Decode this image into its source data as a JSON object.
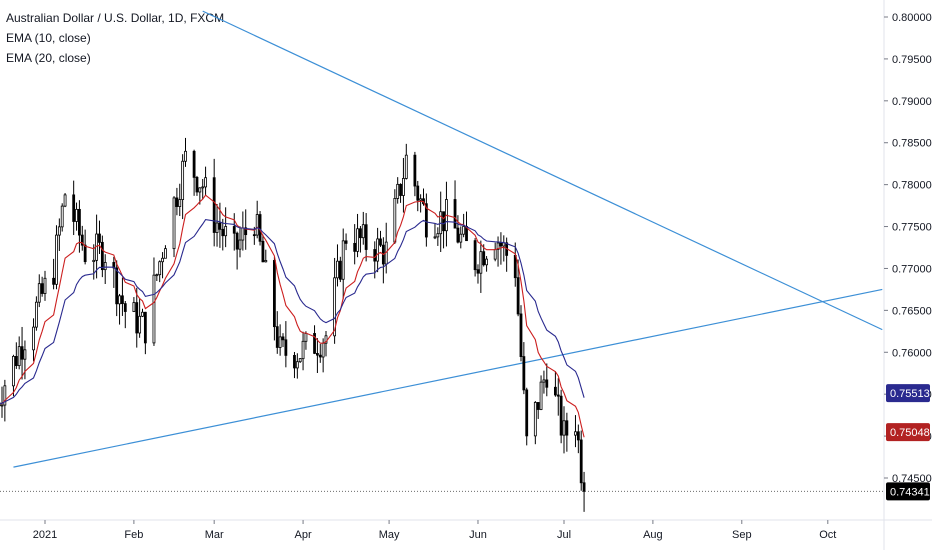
{
  "legend": {
    "title": "Australian Dollar / U.S. Dollar, 1D, FXCM",
    "ema10": "EMA (10, close)",
    "ema20": "EMA (20, close)"
  },
  "colors": {
    "candle": "#000000",
    "ema10": "#cc1f1f",
    "ema20": "#2a2a8f",
    "trendline": "#3c8fd6",
    "ema20_tag": "#2a2a8f",
    "ema10_tag": "#b22222",
    "price_tag": "#000000"
  },
  "chart_data": {
    "type": "candlestick",
    "symbol": "Australian Dollar / U.S. Dollar",
    "timeframe": "1D",
    "source": "FXCM",
    "y_ticks": [
      "0.80000",
      "0.79500",
      "0.79000",
      "0.78500",
      "0.78000",
      "0.77500",
      "0.77000",
      "0.76500",
      "0.76000",
      "0.75500",
      "0.75000",
      "0.74500"
    ],
    "x_ticks": [
      "2021",
      "Feb",
      "Mar",
      "Apr",
      "May",
      "Jun",
      "Jul",
      "Aug",
      "Sep",
      "Oct"
    ],
    "price_tags": {
      "ema20": "0.75513",
      "ema10": "0.75048",
      "last": "0.74341"
    },
    "trendlines": [
      {
        "name": "upper",
        "from": {
          "date": "2021-02-25",
          "price": 0.8007
        },
        "to": {
          "date": "2021-10-20",
          "price": 0.7627
        }
      },
      {
        "name": "lower",
        "from": {
          "date": "2020-12-21",
          "price": 0.7463
        },
        "to": {
          "date": "2021-10-20",
          "price": 0.7675
        }
      }
    ],
    "close_path": [
      {
        "date": "2020-12-15",
        "close": 0.754
      },
      {
        "date": "2021-01-04",
        "close": 0.77
      },
      {
        "date": "2021-01-08",
        "close": 0.779
      },
      {
        "date": "2021-01-15",
        "close": 0.772
      },
      {
        "date": "2021-01-22",
        "close": 0.772
      },
      {
        "date": "2021-01-29",
        "close": 0.765
      },
      {
        "date": "2021-02-05",
        "close": 0.763
      },
      {
        "date": "2021-02-12",
        "close": 0.774
      },
      {
        "date": "2021-02-19",
        "close": 0.783
      },
      {
        "date": "2021-02-25",
        "close": 0.78
      },
      {
        "date": "2021-03-01",
        "close": 0.776
      },
      {
        "date": "2021-03-08",
        "close": 0.772
      },
      {
        "date": "2021-03-15",
        "close": 0.776
      },
      {
        "date": "2021-03-24",
        "close": 0.76
      },
      {
        "date": "2021-03-31",
        "close": 0.76
      },
      {
        "date": "2021-04-09",
        "close": 0.762
      },
      {
        "date": "2021-04-16",
        "close": 0.774
      },
      {
        "date": "2021-04-23",
        "close": 0.773
      },
      {
        "date": "2021-04-30",
        "close": 0.772
      },
      {
        "date": "2021-05-07",
        "close": 0.783
      },
      {
        "date": "2021-05-14",
        "close": 0.776
      },
      {
        "date": "2021-05-21",
        "close": 0.776
      },
      {
        "date": "2021-05-31",
        "close": 0.771
      },
      {
        "date": "2021-06-07",
        "close": 0.774
      },
      {
        "date": "2021-06-14",
        "close": 0.77
      },
      {
        "date": "2021-06-18",
        "close": 0.749
      },
      {
        "date": "2021-06-25",
        "close": 0.758
      },
      {
        "date": "2021-07-01",
        "close": 0.75
      },
      {
        "date": "2021-07-05",
        "close": 0.752
      },
      {
        "date": "2021-07-08",
        "close": 0.7434
      }
    ]
  }
}
